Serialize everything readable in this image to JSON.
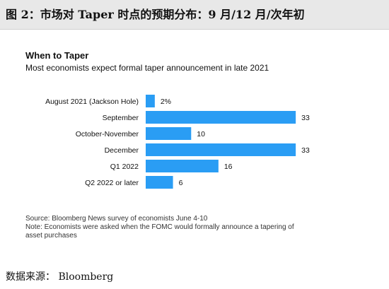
{
  "figure": {
    "title": "图 2：市场对 Taper 时点的预期分布：9 月/12 月/次年初",
    "source": "数据来源：  Bloomberg"
  },
  "colors": {
    "bar": "#2a9df4",
    "header_bg": "#e8e8e8"
  },
  "chart_data": {
    "type": "bar",
    "orientation": "horizontal",
    "title": "When to Taper",
    "subtitle": "Most economists expect formal taper announcement in late 2021",
    "categories": [
      "August 2021 (Jackson Hole)",
      "September",
      "October-November",
      "December",
      "Q1 2022",
      "Q2 2022 or later"
    ],
    "values": [
      2,
      33,
      10,
      33,
      16,
      6
    ],
    "value_labels": [
      "2%",
      "33",
      "10",
      "33",
      "16",
      "6"
    ],
    "xlim": [
      0,
      35
    ],
    "grid": false,
    "legend": "none"
  },
  "notes": {
    "source_line": "Source: Bloomberg News survey of economists June 4-10",
    "note_line_1": "Note: Economists were asked when the FOMC would formally announce a tapering of",
    "note_line_2": "asset purchases"
  }
}
